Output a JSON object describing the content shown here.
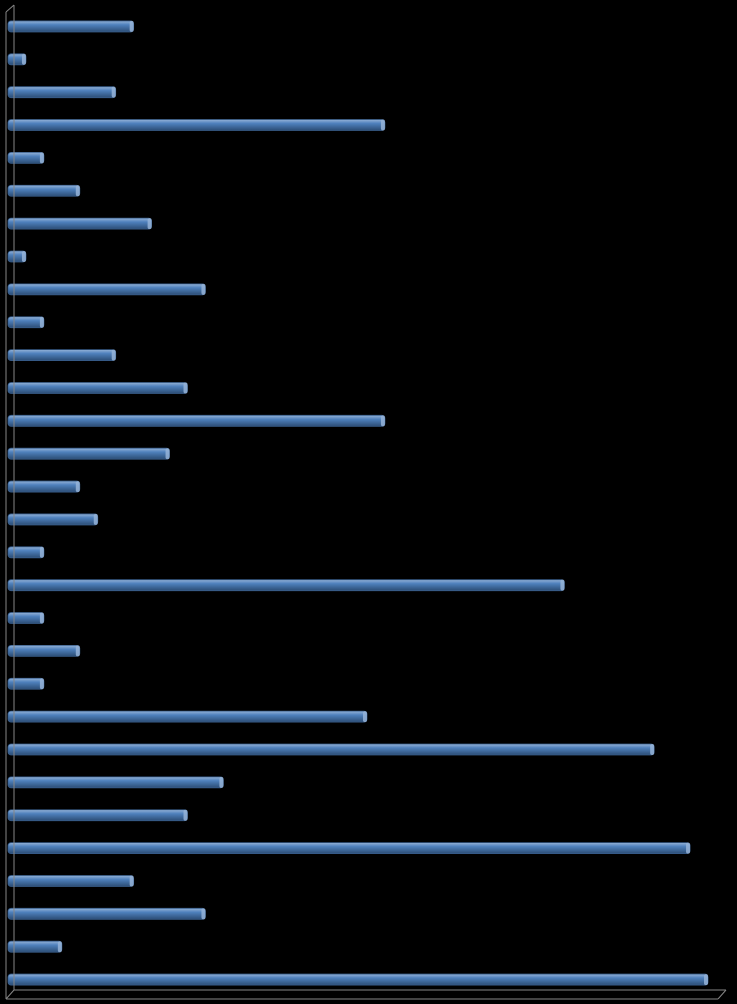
{
  "chart_data": {
    "type": "bar",
    "orientation": "horizontal",
    "title": "",
    "xlabel": "",
    "ylabel": "",
    "grid": false,
    "legend": "none",
    "xlim": [
      0,
      39
    ],
    "values": [
      7,
      1,
      6,
      21,
      2,
      4,
      8,
      1,
      11,
      2,
      6,
      10,
      21,
      9,
      4,
      5,
      2,
      31,
      2,
      4,
      2,
      20,
      36,
      12,
      10,
      38,
      7,
      11,
      3,
      39
    ],
    "colors": {
      "bar": "#4f81bd",
      "bar_highlight": "#95b3d7",
      "bar_shadow": "#2c4d75",
      "axis": "#868686",
      "background": "#000000"
    }
  }
}
